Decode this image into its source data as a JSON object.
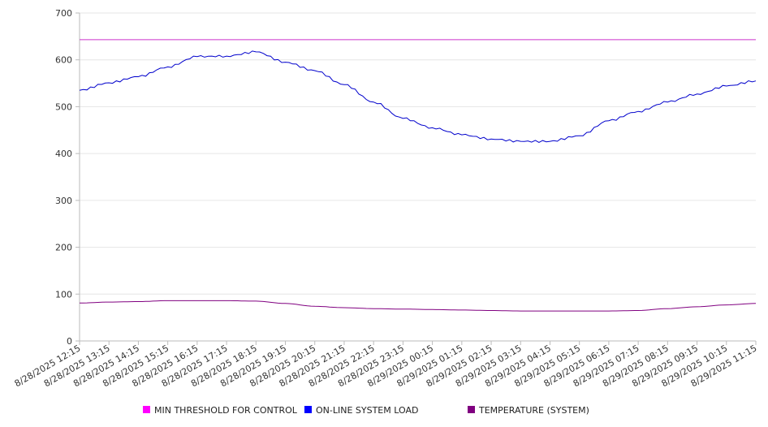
{
  "chart_data": {
    "type": "line",
    "title": "",
    "xlabel": "",
    "ylabel": "",
    "ylim": [
      0,
      700
    ],
    "y_ticks": [
      0,
      100,
      200,
      300,
      400,
      500,
      600,
      700
    ],
    "grid": true,
    "legend_placement": "bottom",
    "x": [
      "8/28/2025 12:15",
      "8/28/2025 13:15",
      "8/28/2025 14:15",
      "8/28/2025 15:15",
      "8/28/2025 16:15",
      "8/28/2025 17:15",
      "8/28/2025 18:15",
      "8/28/2025 19:15",
      "8/28/2025 20:15",
      "8/28/2025 21:15",
      "8/28/2025 22:15",
      "8/28/2025 23:15",
      "8/29/2025 00:15",
      "8/29/2025 01:15",
      "8/29/2025 02:15",
      "8/29/2025 03:15",
      "8/29/2025 04:15",
      "8/29/2025 05:15",
      "8/29/2025 06:15",
      "8/29/2025 07:15",
      "8/29/2025 08:15",
      "8/29/2025 09:15",
      "8/29/2025 10:15",
      "8/29/2025 11:15"
    ],
    "series": [
      {
        "name": "MIN THRESHOLD FOR CONTROL",
        "color": "#cc33cc",
        "values": [
          643,
          643,
          643,
          643,
          643,
          643,
          643,
          643,
          643,
          643,
          643,
          643,
          643,
          643,
          643,
          643,
          643,
          643,
          643,
          643,
          643,
          643,
          643,
          643
        ]
      },
      {
        "name": "ON-LINE SYSTEM LOAD",
        "color": "#0000cc",
        "values": [
          535,
          551,
          564,
          585,
          607,
          608,
          617,
          595,
          577,
          547,
          510,
          475,
          455,
          440,
          431,
          426,
          426,
          438,
          470,
          490,
          510,
          527,
          544,
          555
        ]
      },
      {
        "name": "TEMPERATURE (SYSTEM)",
        "color": "#800080",
        "values": [
          81,
          83,
          84,
          86,
          86,
          86,
          85,
          80,
          74,
          71,
          69,
          68,
          67,
          66,
          65,
          64,
          64,
          64,
          64,
          65,
          69,
          73,
          77,
          80
        ]
      }
    ]
  },
  "legend_swatch_colors": [
    "#ff00ff",
    "#0000ff",
    "#800080"
  ]
}
